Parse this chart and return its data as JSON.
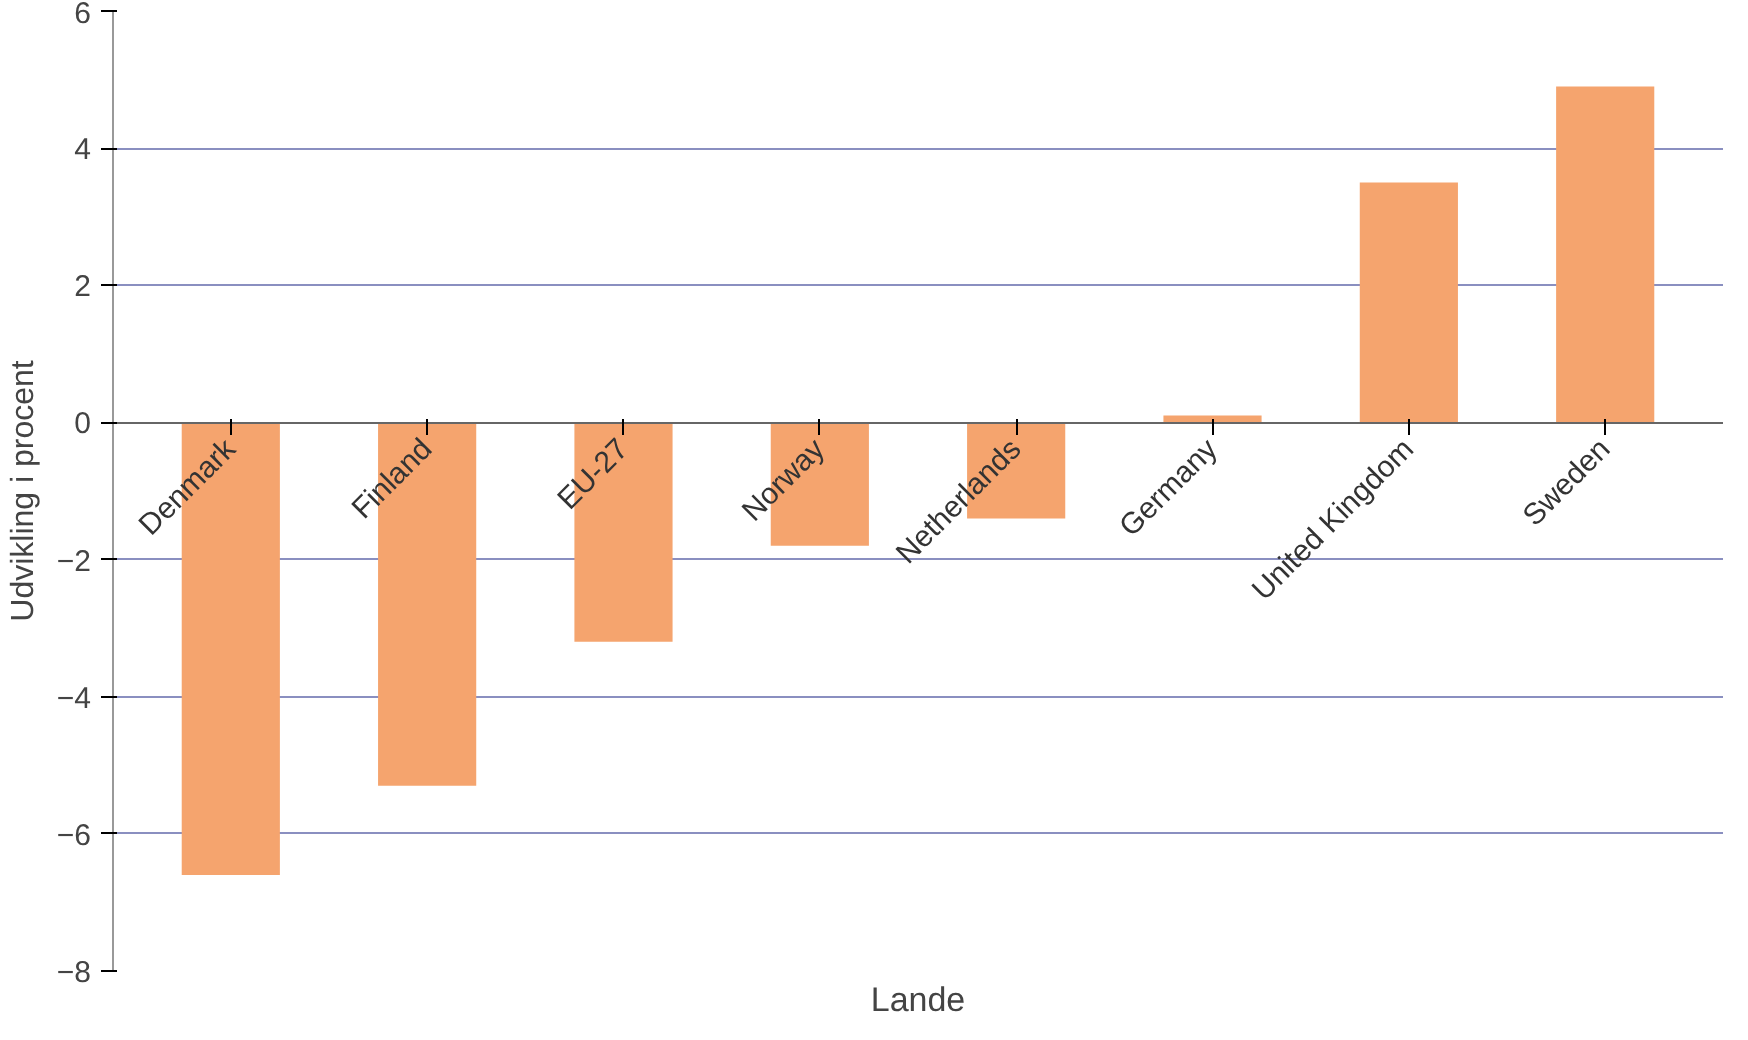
{
  "chart_data": {
    "type": "bar",
    "xlabel": "Lande",
    "ylabel": "Udvikling i procent",
    "categories": [
      "Denmark",
      "Finland",
      "EU-27",
      "Norway",
      "Netherlands",
      "Germany",
      "United Kingdom",
      "Sweden"
    ],
    "values": [
      -6.6,
      -5.3,
      -3.2,
      -1.8,
      -1.4,
      0.1,
      3.5,
      4.9
    ],
    "color": "#f5a46e",
    "ylim": [
      -8,
      6
    ],
    "yticks": [
      -8,
      -6,
      -4,
      -2,
      0,
      2,
      4,
      6
    ],
    "grid": "y"
  }
}
